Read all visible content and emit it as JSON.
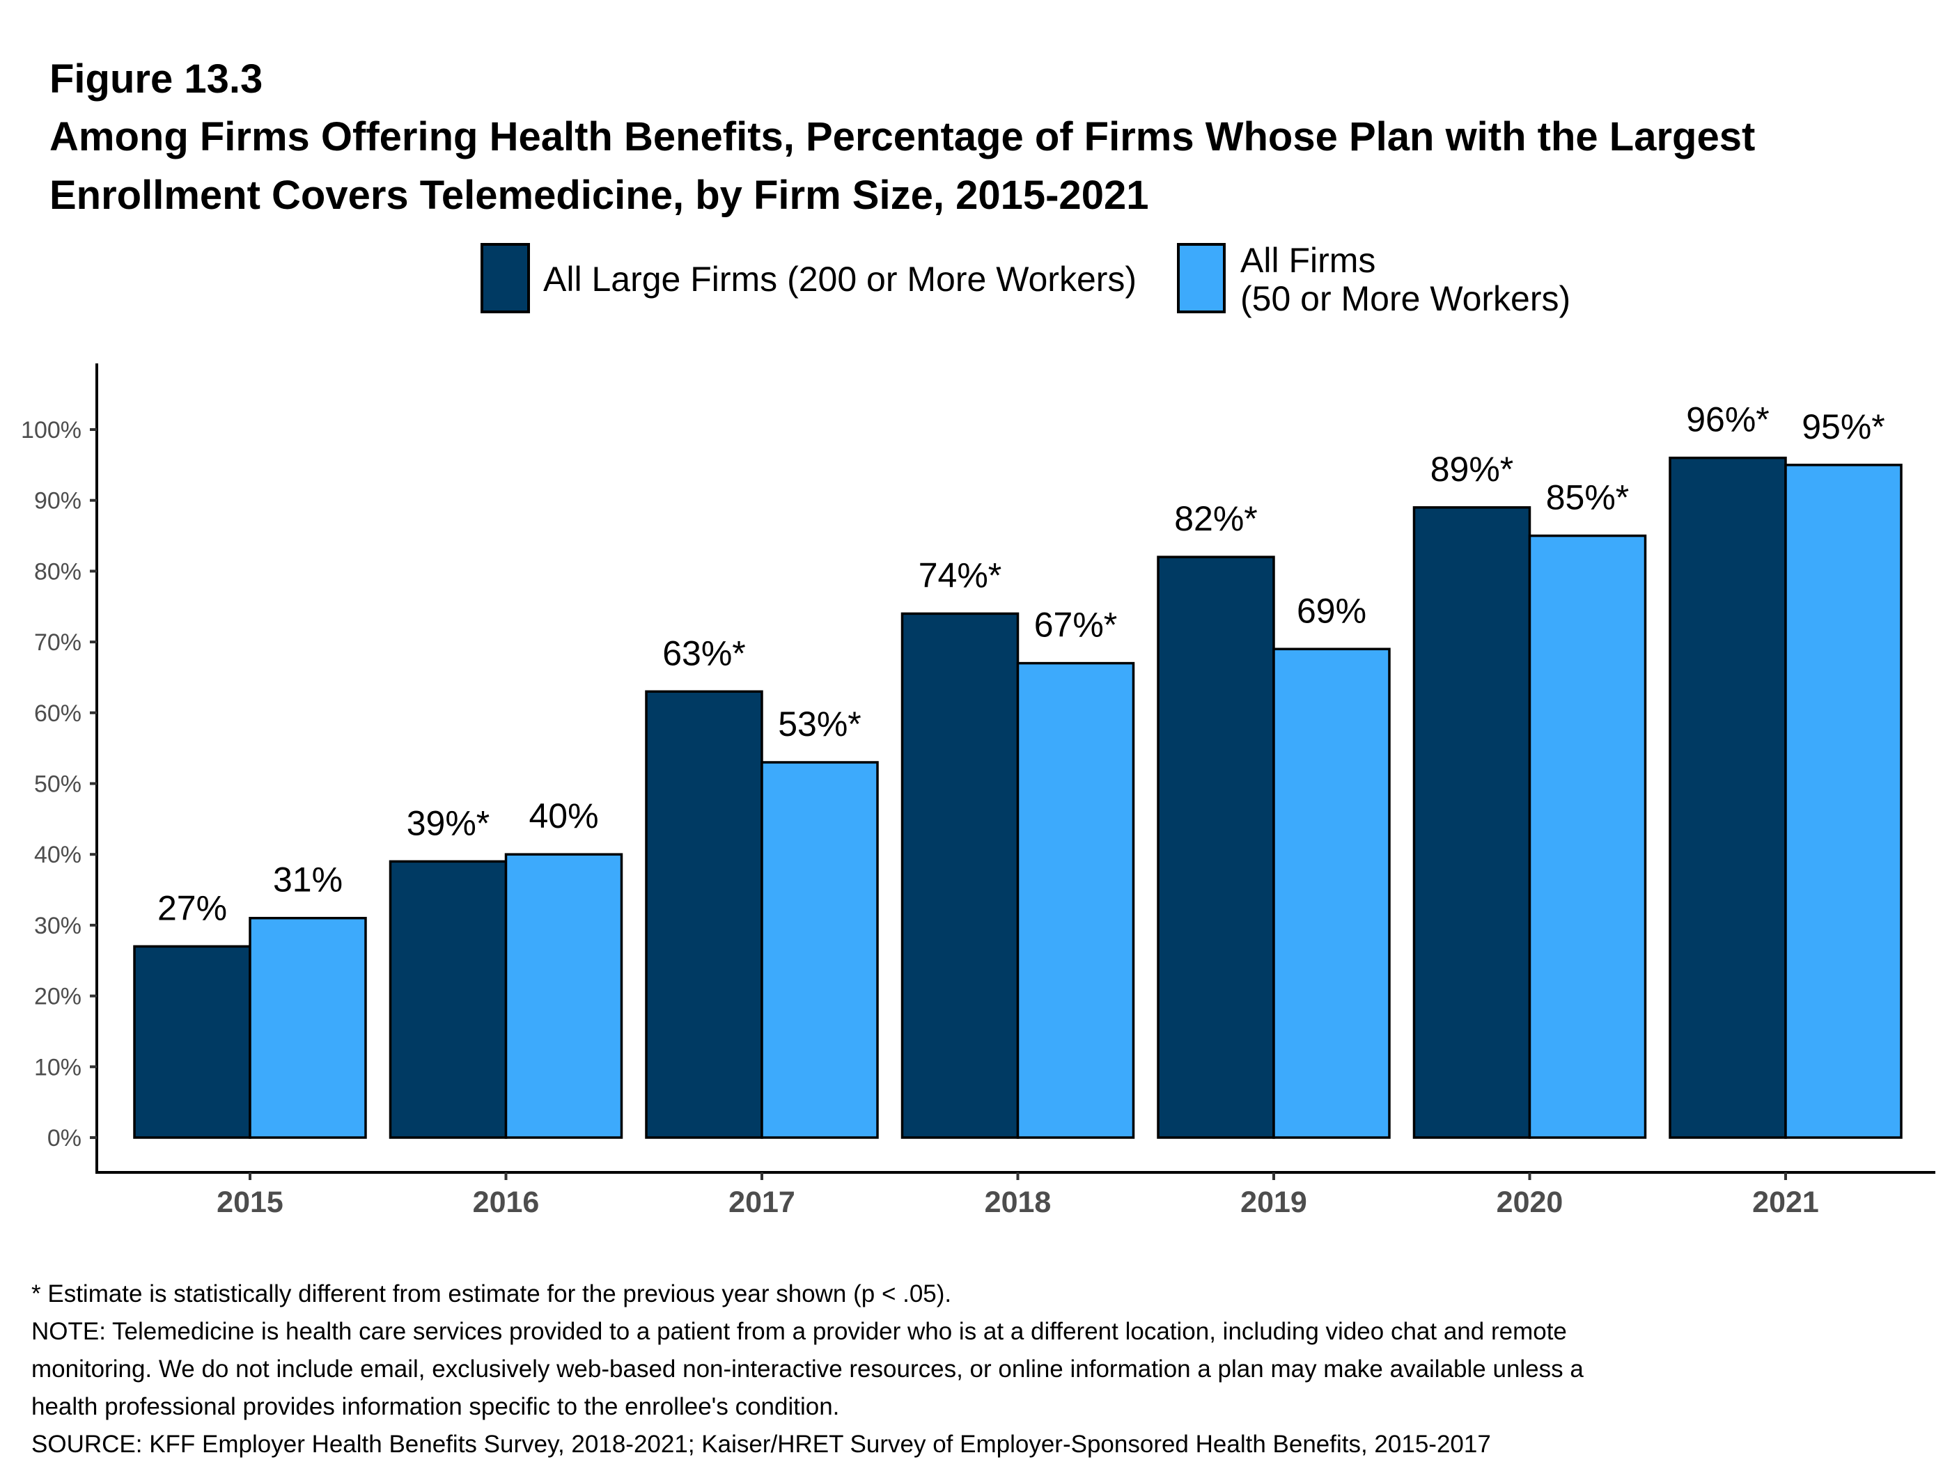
{
  "figure_label": "Figure 13.3",
  "title_lines": [
    "Among Firms Offering Health Benefits, Percentage of Firms Whose Plan with the Largest",
    "Enrollment Covers Telemedicine, by Firm Size, 2015-2021"
  ],
  "legend": {
    "items": [
      {
        "lines": [
          "All Large Firms (200 or More Workers)"
        ],
        "color": "#003A63"
      },
      {
        "lines": [
          "All Firms",
          "(50 or More Workers)"
        ],
        "color": "#3DAAFC"
      }
    ]
  },
  "chart_data": {
    "type": "bar",
    "title": "Among Firms Offering Health Benefits, Percentage of Firms Whose Plan with the Largest Enrollment Covers Telemedicine, by Firm Size, 2015-2021",
    "xlabel": "",
    "ylabel": "",
    "ylim": [
      0,
      100
    ],
    "yticks": [
      "0%",
      "10%",
      "20%",
      "30%",
      "40%",
      "50%",
      "60%",
      "70%",
      "80%",
      "90%",
      "100%"
    ],
    "categories": [
      "2015",
      "2016",
      "2017",
      "2018",
      "2019",
      "2020",
      "2021"
    ],
    "series": [
      {
        "name": "All Large Firms (200 or More Workers)",
        "color": "#003A63",
        "values": [
          27,
          39,
          63,
          74,
          82,
          89,
          96
        ],
        "labels": [
          "27%",
          "39%*",
          "63%*",
          "74%*",
          "82%*",
          "89%*",
          "96%*"
        ]
      },
      {
        "name": "All Firms (50 or More Workers)",
        "color": "#3DAAFC",
        "values": [
          31,
          40,
          53,
          67,
          69,
          85,
          95
        ],
        "labels": [
          "31%",
          "40%",
          "53%*",
          "67%*",
          "69%",
          "85%*",
          "95%*"
        ]
      }
    ],
    "grid": false,
    "legend_position": "top"
  },
  "notes": [
    "* Estimate is statistically different from estimate for the previous year shown (p < .05).",
    "NOTE: Telemedicine is health care services provided to a patient from a provider who is at a different location, including video chat and remote",
    "monitoring.  We do not include email, exclusively web-based non-interactive resources, or online information a plan may make available unless a",
    "health professional provides information specific to the enrollee's condition.",
    "SOURCE: KFF Employer Health Benefits Survey, 2018-2021; Kaiser/HRET Survey of Employer-Sponsored Health Benefits, 2015-2017"
  ]
}
